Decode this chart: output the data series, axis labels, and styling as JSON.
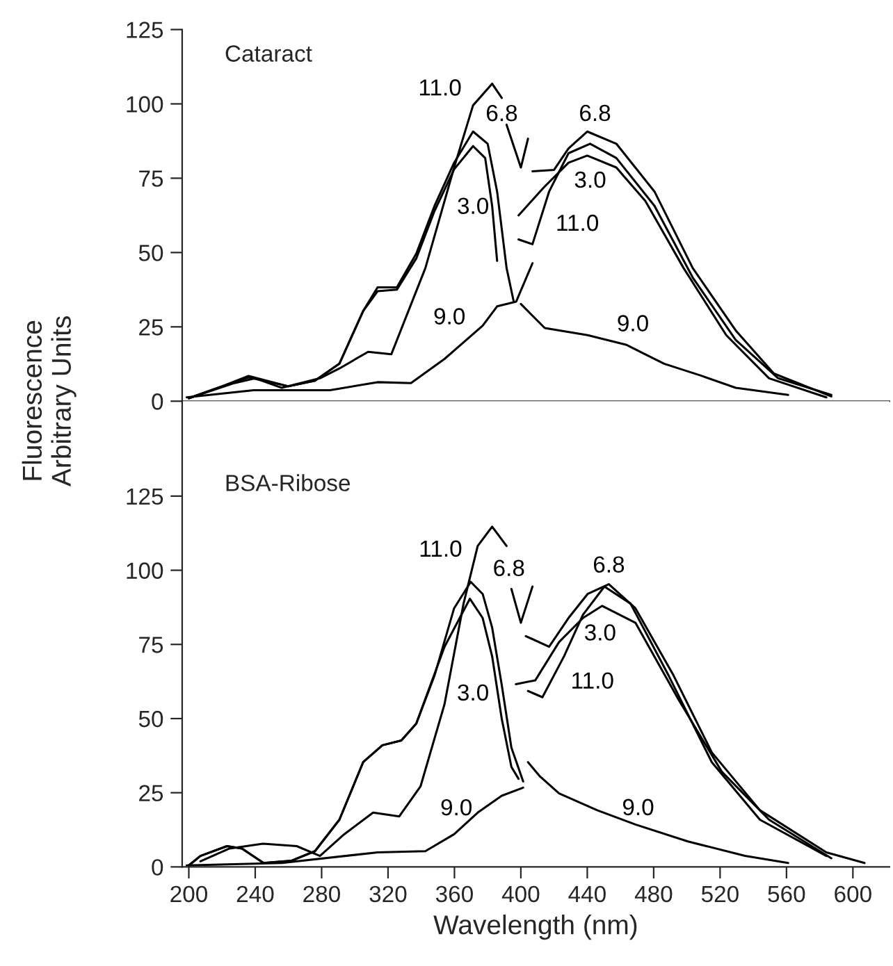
{
  "chart_data": [
    {
      "type": "line",
      "title": "Cataract",
      "ylabel": "Fluorescence\nArbitrary Units",
      "xlim": [
        196,
        622
      ],
      "ylim": [
        0,
        125
      ],
      "xticks": [
        200,
        240,
        280,
        320,
        360,
        400,
        440,
        480,
        520,
        560,
        600
      ],
      "yticks": [
        0,
        25,
        50,
        75,
        100,
        125
      ],
      "tick_labels": "y",
      "grid": false,
      "legend": false,
      "marker": "none",
      "line_style": "solid",
      "color": "#000000",
      "series": [
        {
          "x": [
            200,
            220,
            236,
            260,
            276,
            290.7,
            305,
            313.7,
            325.3,
            337,
            348,
            359.8,
            371.2,
            380,
            385.7,
            391.4,
            395.7
          ],
          "values": [
            1,
            5,
            8.5,
            5,
            6.9,
            12.6,
            30.3,
            38.3,
            38.3,
            49.6,
            65.7,
            80.2,
            90.7,
            86.6,
            70.5,
            44.8,
            33.5
          ]
        },
        {
          "name": "3.0",
          "x": [
            200,
            220,
            236,
            260,
            276,
            290.7,
            305,
            313.7,
            325.3,
            337,
            348,
            359.8,
            371.2,
            378.5,
            382.7,
            385.7
          ],
          "values": [
            1,
            5,
            8,
            5,
            6.9,
            12.6,
            30.3,
            37,
            37.5,
            48,
            64,
            78,
            85.8,
            81.8,
            65.7,
            47.2
          ]
        },
        {
          "name": "11.0",
          "x": [
            200,
            227.5,
            240,
            256,
            279,
            290.7,
            308,
            322,
            342.5,
            359.8,
            371.2,
            382.7,
            388.5
          ],
          "values": [
            1,
            6.1,
            7.7,
            4.5,
            7.7,
            11,
            16.6,
            15.8,
            44.8,
            78.6,
            99.5,
            106.8,
            102
          ]
        },
        {
          "name": "9.0",
          "x": [
            198.7,
            239,
            285,
            313.7,
            333.8,
            354,
            377,
            385.7,
            397.2,
            407
          ],
          "values": [
            1.3,
            3.7,
            3.7,
            6.4,
            6.1,
            14.2,
            25.4,
            31.9,
            33.5,
            46.4
          ]
        },
        {
          "name": "6.8",
          "x": [
            391.4,
            400,
            404.3
          ],
          "values": [
            93,
            78.6,
            88.3
          ]
        },
        {
          "name": "9.0",
          "x": [
            400,
            414.4,
            440.2,
            463.3,
            486.3,
            509,
            529.4,
            561
          ],
          "values": [
            32.7,
            24.6,
            22.2,
            19,
            12.6,
            8.5,
            4.5,
            2.1
          ]
        },
        {
          "name": "6.8",
          "x": [
            407,
            420,
            428.7,
            440,
            457.5,
            480.5,
            503.5,
            529.4,
            552.4,
            587
          ],
          "values": [
            77.3,
            77.8,
            85,
            90.7,
            86.6,
            70.5,
            44.8,
            23.8,
            9.3,
            1.6
          ]
        },
        {
          "name": "3.0",
          "x": [
            398.6,
            414,
            428.7,
            440,
            457.5,
            475,
            498,
            523.7,
            549.5,
            584
          ],
          "values": [
            62.5,
            72,
            80.2,
            82.6,
            78.6,
            67.3,
            44.8,
            22.2,
            7.7,
            1.3
          ]
        },
        {
          "name": "11.0",
          "x": [
            398.6,
            407,
            417,
            428.7,
            441.7,
            457.5,
            480.5,
            503.5,
            529.4,
            555,
            587
          ],
          "values": [
            54.4,
            52.8,
            70.5,
            83.4,
            86.6,
            81.8,
            65.7,
            41.6,
            20.6,
            7.7,
            2.1
          ]
        }
      ]
    },
    {
      "type": "line",
      "title": "BSA-Ribose",
      "xlabel": "Wavelength (nm)",
      "xlim": [
        196,
        622
      ],
      "ylim": [
        0,
        157
      ],
      "xticks": [
        200,
        240,
        280,
        320,
        360,
        400,
        440,
        480,
        520,
        560,
        600
      ],
      "yticks": [
        0,
        25,
        50,
        75,
        100,
        125
      ],
      "grid": false,
      "legend": false,
      "marker": "none",
      "line_style": "solid",
      "color": "#000000",
      "series": [
        {
          "x": [
            200,
            207,
            223,
            232,
            245,
            262,
            276,
            290.7,
            305,
            316.6,
            328,
            337,
            348,
            359.8,
            369.8,
            377,
            382.7,
            388.5,
            394.3,
            401.4
          ],
          "values": [
            0.5,
            3.7,
            7,
            6.2,
            1.3,
            2.1,
            5.3,
            15.9,
            35.3,
            41,
            42.6,
            48.3,
            64.5,
            87.2,
            96.1,
            92,
            80.7,
            61.3,
            40.2,
            28.8
          ]
        },
        {
          "name": "3.0",
          "x": [
            200,
            207,
            223,
            232,
            245,
            262,
            276,
            290.7,
            305,
            316.6,
            328,
            337,
            354,
            369.3,
            377,
            382.7,
            388.5,
            394.3,
            398.6
          ],
          "values": [
            0.5,
            3.7,
            7,
            6.2,
            1.3,
            2.1,
            5.3,
            15.9,
            35.3,
            41,
            42.6,
            48.3,
            74.2,
            90.4,
            83.9,
            71,
            49.9,
            33.7,
            29.7
          ]
        },
        {
          "name": "11.0",
          "x": [
            207,
            224.5,
            244.7,
            265,
            279,
            293.6,
            311,
            326.7,
            339.6,
            354,
            365.5,
            374,
            382.7,
            391.4
          ],
          "values": [
            1.9,
            6.2,
            7.8,
            7,
            3.7,
            11,
            18.3,
            17,
            27.2,
            54.8,
            88.8,
            108.2,
            114.7,
            108.2
          ]
        },
        {
          "name": "9.0",
          "x": [
            198.7,
            256,
            313.7,
            342.5,
            359.8,
            374,
            388.5,
            401.4
          ],
          "values": [
            0.5,
            1.3,
            4.9,
            5.3,
            11,
            18.3,
            24,
            26.7
          ]
        },
        {
          "name": "6.8",
          "x": [
            394.3,
            400,
            407
          ],
          "values": [
            93.7,
            82.3,
            94.5
          ]
        },
        {
          "name": "9.0",
          "x": [
            404.3,
            411.5,
            423,
            446,
            469,
            500.6,
            535,
            561
          ],
          "values": [
            35.3,
            30.5,
            24.8,
            19.1,
            14.3,
            8.6,
            3.7,
            1.3
          ]
        },
        {
          "name": "6.8",
          "x": [
            403,
            417,
            428.7,
            440.2,
            453,
            469,
            492,
            515,
            544,
            584,
            607
          ],
          "values": [
            77.8,
            74.2,
            83.9,
            92,
            95.3,
            87.2,
            64.5,
            38.6,
            19.1,
            4.9,
            1.3
          ]
        },
        {
          "name": "11.0",
          "x": [
            404.3,
            413,
            426,
            437.4,
            450.3,
            466,
            489,
            515,
            544,
            584
          ],
          "values": [
            59.3,
            57.2,
            71,
            85,
            94.5,
            88.8,
            64.5,
            35.3,
            15.9,
            3.7
          ]
        },
        {
          "name": "3.0",
          "x": [
            397,
            408.7,
            423,
            437.4,
            449,
            469,
            495,
            521,
            549.5,
            587
          ],
          "values": [
            61.6,
            62.9,
            75.8,
            83.9,
            88,
            82.3,
            56.4,
            32.1,
            15.9,
            2.9
          ]
        }
      ]
    }
  ]
}
